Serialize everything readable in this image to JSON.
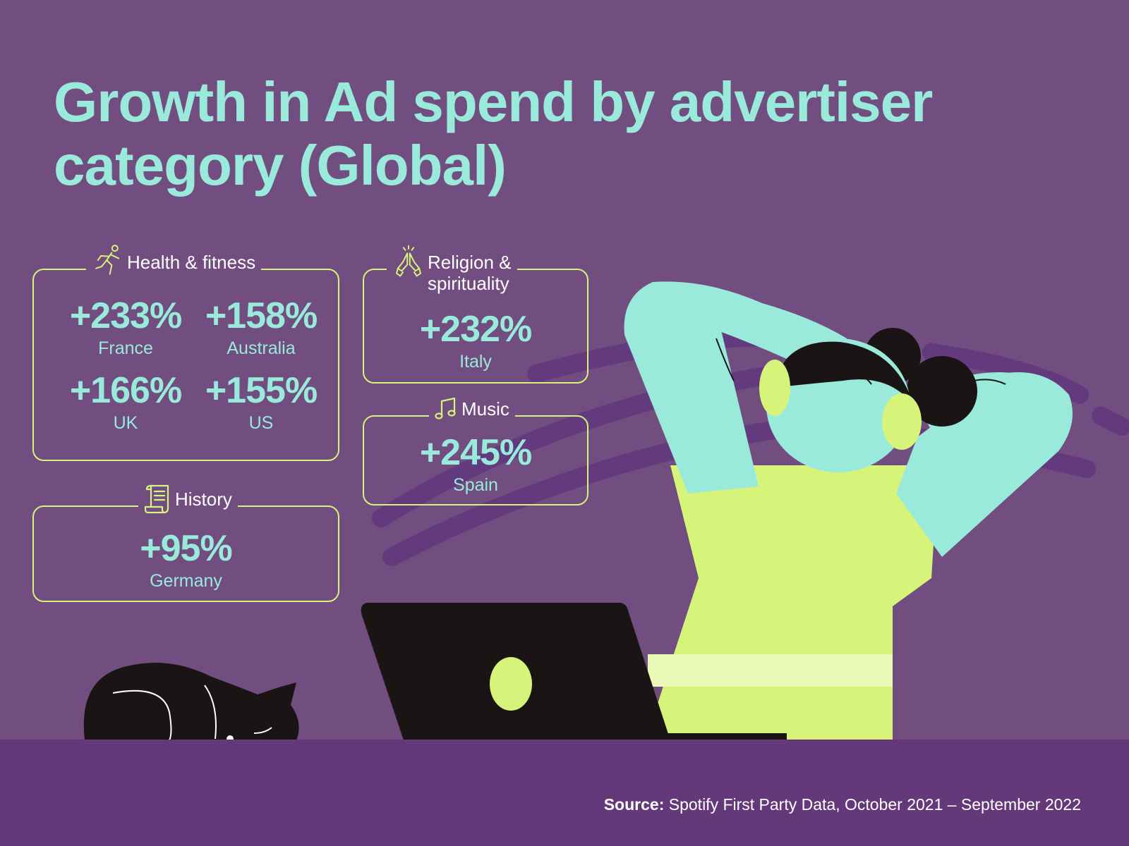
{
  "title": "Growth in Ad spend by advertiser category (Global)",
  "colors": {
    "background": "#714d80",
    "footer": "#653879",
    "accent_text": "#99eadb",
    "card_border": "#d6f37a"
  },
  "cards": {
    "health": {
      "icon": "running-person-icon",
      "label": "Health & fitness",
      "stats": [
        {
          "value": "+233%",
          "label": "France"
        },
        {
          "value": "+158%",
          "label": "Australia"
        },
        {
          "value": "+166%",
          "label": "UK"
        },
        {
          "value": "+155%",
          "label": "US"
        }
      ]
    },
    "history": {
      "icon": "scroll-icon",
      "label": "History",
      "stats": [
        {
          "value": "+95%",
          "label": "Germany"
        }
      ]
    },
    "religion": {
      "icon": "praying-hands-icon",
      "label_line1": "Religion &",
      "label_line2": "spirituality",
      "stats": [
        {
          "value": "+232%",
          "label": "Italy"
        }
      ]
    },
    "music": {
      "icon": "music-note-icon",
      "label": "Music",
      "stats": [
        {
          "value": "+245%",
          "label": "Spain"
        }
      ]
    }
  },
  "source": {
    "prefix": "Source:",
    "text": " Spotify First Party Data, October 2021 – September 2022"
  }
}
